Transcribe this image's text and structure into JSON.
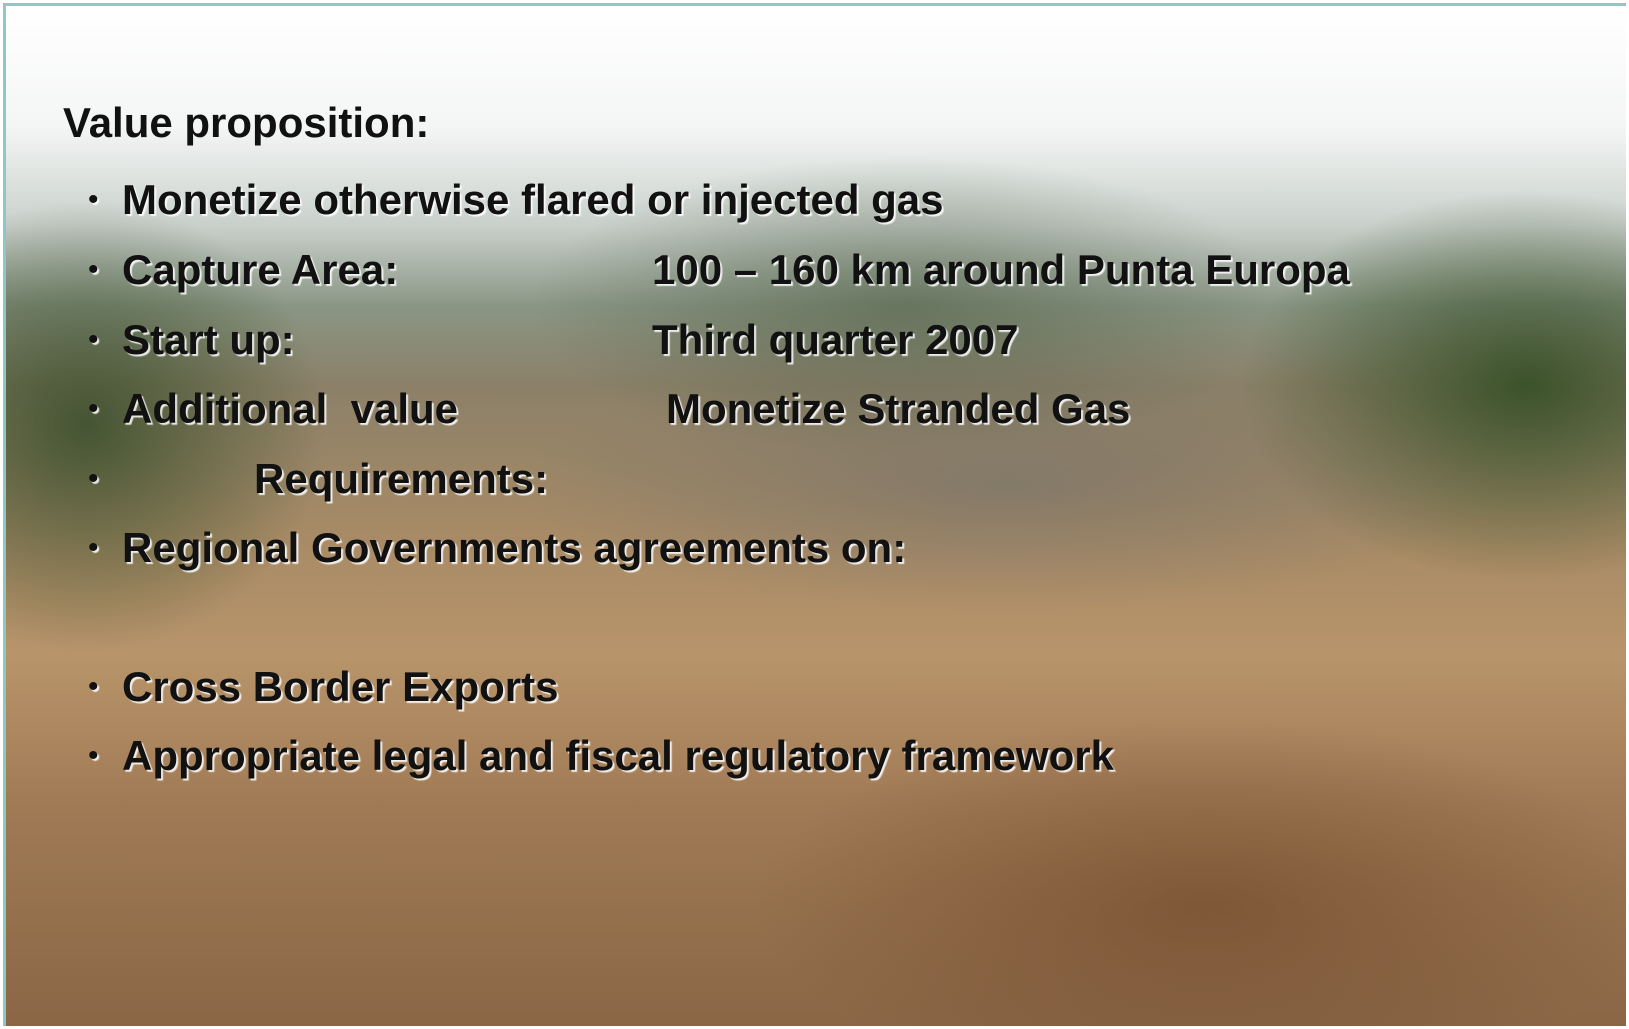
{
  "slide": {
    "title": "Value proposition:",
    "bullets": [
      {
        "text": "Monetize otherwise flared or injected gas"
      },
      {
        "text": "Capture Area:",
        "value": "100 – 160 km around Punta Europa"
      },
      {
        "text": "Start up:",
        "value": "Third quarter 2007"
      },
      {
        "text": "Additional  value",
        "value": "Monetize Stranded Gas"
      },
      {
        "text": "Requirements:"
      },
      {
        "text": "Regional Governments agreements on:"
      },
      {
        "text": "Cross Border Exports"
      },
      {
        "text": "Appropriate legal and fiscal regulatory framework"
      }
    ]
  }
}
